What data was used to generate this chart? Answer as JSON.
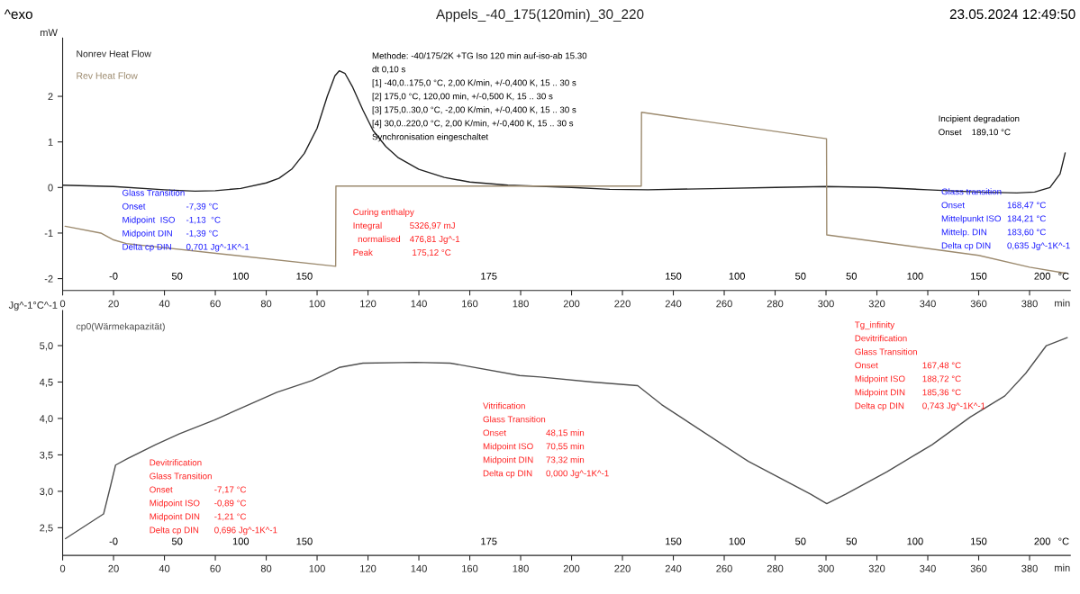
{
  "chart_data": [
    {
      "type": "line",
      "title": "Appels_-40_175(120min)_30_220",
      "xlabel": "min",
      "ylabel": "mW",
      "xlim": [
        0,
        396
      ],
      "ylim": [
        -2.26,
        3.28
      ],
      "xticks": [
        0,
        20,
        40,
        60,
        80,
        100,
        120,
        140,
        160,
        180,
        200,
        220,
        240,
        260,
        280,
        300,
        320,
        340,
        360,
        380
      ],
      "yticks": [
        -2,
        -1,
        0,
        1,
        2
      ],
      "legend": "top left",
      "series": [
        {
          "name": "Nonrev Heat Flow",
          "color": "#202020",
          "x": [
            0,
            20,
            40,
            52,
            60,
            70,
            80,
            85,
            90,
            95,
            100,
            104,
            107,
            108.7,
            111,
            114,
            118,
            122,
            127,
            132,
            140,
            150,
            160,
            175,
            200,
            215,
            230,
            260,
            280,
            300,
            320,
            340,
            360,
            375,
            382,
            388,
            392,
            394
          ],
          "values": [
            0.05,
            0.02,
            -0.05,
            -0.08,
            -0.07,
            -0.02,
            0.1,
            0.2,
            0.4,
            0.75,
            1.3,
            2.0,
            2.45,
            2.56,
            2.5,
            2.2,
            1.7,
            1.25,
            0.9,
            0.65,
            0.4,
            0.22,
            0.12,
            0.05,
            0.0,
            -0.04,
            -0.05,
            -0.02,
            0.0,
            0.02,
            0.0,
            -0.05,
            -0.1,
            -0.12,
            -0.1,
            0.0,
            0.3,
            0.76
          ]
        },
        {
          "name": "Rev Heat Flow",
          "color": "#9c8a6e",
          "x": [
            1,
            15,
            20,
            25,
            107.3,
            107.4,
            227.4,
            227.5,
            300.2,
            300.3,
            360,
            380,
            394
          ],
          "values": [
            -0.85,
            -1.0,
            -1.15,
            -1.23,
            -1.73,
            0.03,
            0.03,
            1.65,
            1.07,
            -1.04,
            -1.49,
            -1.75,
            -1.88
          ]
        }
      ],
      "annotations": [
        "^exo",
        "23.05.2024 12:49:50",
        "Methode: -40/175/2K +TG Iso 120 min auf-iso-ab 15.30\ndt 0,10 s\n[1] -40,0..175,0 °C, 2,00 K/min, +/-0,400 K, 15 .. 30 s\n[2] 175,0 °C, 120,00 min, +/-0,500 K, 15 .. 30 s\n[3] 175,0..30,0 °C, -2,00 K/min, +/-0,400 K, 15 .. 30 s\n[4] 30,0..220,0 °C, 2,00 K/min, +/-0,400 K, 15 .. 30 s\nSynchronisation eingeschaltet",
        "Glass Transition\nOnset\t-7,39 °C\nMidpoint  ISO\t-1,13  °C\nMidpoint DIN\t-1,39 °C\nDelta cp DIN\t0,701 Jg^-1K^-1",
        "Curing enthalpy\nIntegral\t5326,97 mJ\n  normalised\t476,81 Jg^-1\nPeak\t 175,12 °C",
        "Incipient degradation\nOnset\t189,10 °C",
        "Glass transition\nOnset\t168,47 °C\nMittelpunkt ISO\t184,21 °C\nMittelp. DIN\t183,60 °C\nDelta cp DIN\t0,635 Jg^-1K^-1",
        "-0",
        "50",
        "100",
        "150",
        "175",
        "150",
        "100",
        "50",
        "50",
        "100",
        "150",
        "200",
        "°C"
      ]
    },
    {
      "type": "line",
      "xlabel": "min",
      "ylabel": "Jg^-1°C^-1",
      "xlim": [
        0,
        396
      ],
      "ylim": [
        2.12,
        5.48
      ],
      "xticks": [
        0,
        20,
        40,
        60,
        80,
        100,
        120,
        140,
        160,
        180,
        200,
        220,
        240,
        260,
        280,
        300,
        320,
        340,
        360,
        380
      ],
      "yticks": [
        {
          "value": 2.5,
          "label": "2,5"
        },
        {
          "value": 3.0,
          "label": "3,0"
        },
        {
          "value": 3.5,
          "label": "3,5"
        },
        {
          "value": 4.0,
          "label": "4,0"
        },
        {
          "value": 4.5,
          "label": "4,5"
        },
        {
          "value": 5.0,
          "label": "5,0"
        }
      ],
      "legend": "top left",
      "series": [
        {
          "name": "cp0(Wärmekapazität)",
          "color": "#505050",
          "x": [
            1.1,
            16.1,
            18.8,
            20.8,
            25.6,
            36.5,
            46,
            59.7,
            84.2,
            98,
            108.7,
            118,
            138.7,
            152.3,
            179.6,
            187.7,
            208.2,
            226,
            235.4,
            269.5,
            294,
            300.3,
            307.7,
            324,
            341.7,
            356.7,
            370.3,
            378.5,
            386.6,
            394.8
          ],
          "values": [
            2.35,
            2.69,
            3.07,
            3.36,
            3.45,
            3.64,
            3.79,
            3.98,
            4.36,
            4.52,
            4.7,
            4.76,
            4.77,
            4.76,
            4.59,
            4.57,
            4.5,
            4.45,
            4.19,
            3.41,
            2.96,
            2.83,
            2.96,
            3.27,
            3.64,
            4.02,
            4.31,
            4.62,
            5.0,
            5.11
          ]
        }
      ],
      "annotations": [
        "Devitrification\nGlass Transition\nOnset\t-7,17 °C\nMidpoint ISO\t-0,89 °C\nMidpoint DIN\t-1,21 °C\nDelta cp DIN\t0,696 Jg^-1K^-1",
        "Vitrification\nGlass Transition\nOnset\t48,15 min\nMidpoint ISO\t70,55 min\nMidpoint DIN\t73,32 min\nDelta cp DIN\t0,000 Jg^-1K^-1",
        "Tg_infinity\nDevitrification\nGlass Transition\nOnset\t167,48 °C\nMidpoint ISO\t188,72 °C\nMidpoint DIN\t185,36 °C\nDelta cp DIN\t0,743 Jg^-1K^-1",
        "-0",
        "50",
        "100",
        "150",
        "175",
        "150",
        "100",
        "50",
        "50",
        "100",
        "150",
        "200",
        "°C"
      ]
    }
  ]
}
